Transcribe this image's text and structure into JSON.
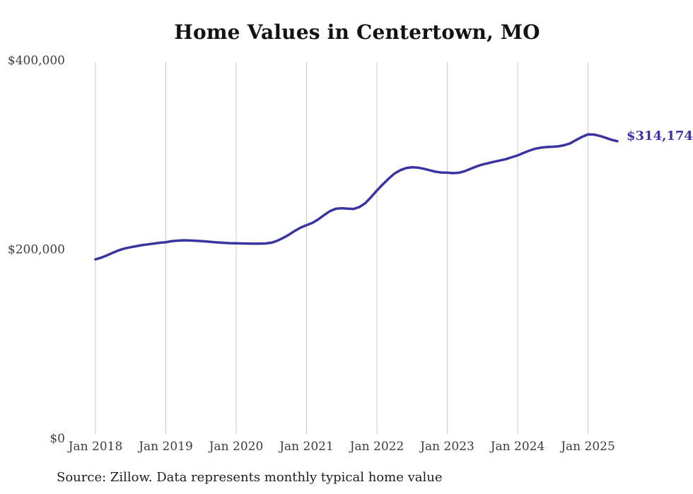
{
  "title": "Home Values in Centertown, MO",
  "source_note": "Source: Zillow. Data represents monthly typical home value",
  "colors": {
    "line": "#3a34a1",
    "end_label": "#3a34a1",
    "grid": "#c9c9c9",
    "axis_text": "#3d3d3d",
    "title_text": "#121212",
    "source_text": "#1e1e1e",
    "background": "#ffffff"
  },
  "chart_data": {
    "type": "line",
    "title": "Home Values in Centertown, MO",
    "xlabel": "",
    "ylabel": "",
    "x_tick_labels": [
      "Jan 2018",
      "Jan 2019",
      "Jan 2020",
      "Jan 2021",
      "Jan 2022",
      "Jan 2023",
      "Jan 2024",
      "Jan 2025"
    ],
    "y_tick_labels": [
      "$0",
      "$200,000",
      "$400,000"
    ],
    "y_ticks": [
      0,
      200000,
      400000
    ],
    "ylim": [
      0,
      400000
    ],
    "grid": "vertical-only",
    "legend": "none",
    "frequency": "monthly",
    "x_start": "Jan 2018",
    "x_end": "Jun 2025",
    "end_label": "$314,174",
    "end_value": 314174,
    "series": [
      {
        "name": "Typical home value",
        "values": [
          189200,
          191000,
          193500,
          196300,
          198800,
          200700,
          202000,
          203200,
          204300,
          205100,
          205900,
          206700,
          207300,
          208400,
          209000,
          209300,
          209200,
          208900,
          208500,
          208000,
          207500,
          207000,
          206600,
          206300,
          206200,
          206000,
          205900,
          205800,
          205800,
          206000,
          206800,
          208800,
          211800,
          215300,
          219300,
          222800,
          225300,
          227800,
          231500,
          236000,
          240200,
          242700,
          243300,
          242800,
          242500,
          244500,
          248500,
          255000,
          262000,
          268500,
          274500,
          280000,
          283500,
          285800,
          286600,
          286200,
          285000,
          283400,
          281900,
          281000,
          280900,
          280400,
          280800,
          282500,
          285000,
          287500,
          289500,
          291000,
          292500,
          293800,
          295200,
          297200,
          299100,
          301800,
          304200,
          306200,
          307400,
          308000,
          308300,
          308800,
          310000,
          312000,
          315500,
          318800,
          321400,
          321200,
          319800,
          317800,
          315700,
          314174
        ]
      }
    ]
  }
}
